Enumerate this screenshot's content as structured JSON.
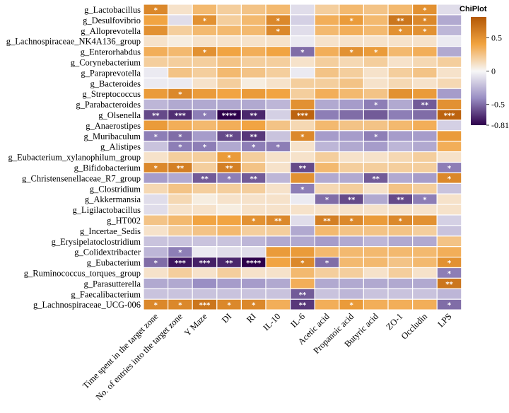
{
  "chart_data": {
    "type": "heatmap",
    "title": "",
    "rows": [
      "g_Lactobacillus",
      "g_Desulfovibrio",
      "g_Alloprevotella",
      "g_Lachnospiraceae_NK4A136_group",
      "g_Enterorhabdus",
      "g_Corynebacterium",
      "g_Paraprevotella",
      "g_Bacteroides",
      "g_Streptococcus",
      "g_Parabacteroides",
      "g_Olsenella",
      "g_Anaerostipes",
      "g_Muribaculum",
      "g_Alistipes",
      "g_Eubacterium_xylanophilum_group",
      "g_Bifidobacterium",
      "g_Christensenellaceae_R7_group",
      "g_Clostridium",
      "g_Akkermansia",
      "g_Ligilactobacillus",
      "g_HT002",
      "g_Incertae_Sedis",
      "g_Erysipelatoclostridium",
      "g_Colidextribacter",
      "g_Eubacterium",
      "g_Ruminococcus_torques_group",
      "g_Parasutterella",
      "g_Faecalibacterium",
      "g_Lachnospiraceae_UCG-006"
    ],
    "columns": [
      "Time spent in the target zone",
      "No. of entries into the target zone",
      "Y Maze",
      "DI",
      "RI",
      "IL-10",
      "IL-6",
      "Acetic acid",
      "Propanoic acid",
      "Butyric acid",
      "ZO-1",
      "Occludin",
      "LPS"
    ],
    "values": [
      [
        0.55,
        0.1,
        0.3,
        0.2,
        0.25,
        0.3,
        -0.1,
        0.2,
        0.3,
        0.25,
        0.3,
        0.5,
        -0.1
      ],
      [
        0.4,
        -0.1,
        0.5,
        0.2,
        0.3,
        0.55,
        -0.15,
        0.35,
        0.45,
        0.3,
        0.65,
        0.55,
        -0.3
      ],
      [
        0.5,
        0.2,
        0.3,
        0.3,
        0.3,
        0.55,
        -0.1,
        0.3,
        0.35,
        0.3,
        0.5,
        0.5,
        -0.25
      ],
      [
        0.1,
        0.05,
        0.1,
        0.1,
        0.1,
        0.1,
        -0.05,
        0.1,
        0.1,
        0.1,
        0.1,
        0.1,
        -0.05
      ],
      [
        0.35,
        0.3,
        0.5,
        0.4,
        0.35,
        0.4,
        -0.5,
        0.35,
        0.5,
        0.45,
        0.3,
        0.35,
        -0.3
      ],
      [
        0.2,
        0.2,
        0.2,
        0.25,
        0.2,
        0.2,
        0.1,
        0.2,
        0.15,
        0.2,
        0.1,
        0.15,
        0.2
      ],
      [
        -0.05,
        0.25,
        0.2,
        0.3,
        0.25,
        0.2,
        -0.05,
        0.25,
        0.2,
        0.1,
        0.2,
        0.25,
        0.1
      ],
      [
        -0.05,
        -0.05,
        0.1,
        0.2,
        0.05,
        0.1,
        0.2,
        0.2,
        0.25,
        0.1,
        0.15,
        0.1,
        0.15
      ],
      [
        0.45,
        0.55,
        0.45,
        0.4,
        0.45,
        0.4,
        0.2,
        0.35,
        0.3,
        0.25,
        0.5,
        0.45,
        -0.35
      ],
      [
        -0.25,
        -0.3,
        -0.3,
        -0.3,
        -0.3,
        -0.25,
        0.5,
        -0.3,
        -0.35,
        -0.45,
        -0.3,
        -0.55,
        0.5
      ],
      [
        -0.6,
        -0.68,
        -0.45,
        -0.81,
        -0.7,
        -0.15,
        0.75,
        -0.45,
        -0.5,
        -0.55,
        -0.45,
        -0.5,
        0.75
      ],
      [
        0.45,
        0.35,
        0.3,
        0.35,
        0.4,
        0.25,
        0.15,
        0.3,
        0.25,
        0.25,
        0.3,
        0.35,
        -0.15
      ],
      [
        -0.45,
        -0.5,
        -0.35,
        -0.6,
        -0.65,
        -0.2,
        0.55,
        -0.35,
        -0.35,
        -0.45,
        -0.35,
        -0.35,
        0.45
      ],
      [
        -0.2,
        -0.45,
        -0.45,
        -0.3,
        -0.45,
        -0.45,
        0.1,
        -0.25,
        -0.3,
        -0.35,
        -0.25,
        -0.3,
        0.35
      ],
      [
        0.1,
        0.2,
        0.2,
        0.45,
        0.2,
        0.1,
        0.1,
        0.2,
        0.1,
        0.1,
        0.15,
        0.2,
        0.1
      ],
      [
        0.55,
        0.6,
        0.2,
        0.6,
        0.25,
        0.1,
        -0.6,
        0.3,
        0.2,
        0.2,
        0.2,
        0.2,
        -0.45
      ],
      [
        -0.35,
        -0.3,
        -0.55,
        -0.45,
        -0.55,
        -0.25,
        0.5,
        -0.3,
        -0.3,
        -0.55,
        -0.3,
        -0.35,
        0.55
      ],
      [
        0.15,
        0.25,
        0.2,
        0.2,
        0.2,
        0.1,
        -0.45,
        0.15,
        0.2,
        0.1,
        0.25,
        0.2,
        -0.2
      ],
      [
        -0.1,
        0.15,
        0.05,
        0.1,
        0.1,
        0.1,
        -0.05,
        -0.5,
        -0.6,
        -0.3,
        -0.6,
        -0.45,
        0.1
      ],
      [
        -0.1,
        0.1,
        0.1,
        0.05,
        0.1,
        0.1,
        0.1,
        0.1,
        0.1,
        0.1,
        0.1,
        0.1,
        0.1
      ],
      [
        0.25,
        0.3,
        0.4,
        0.4,
        0.5,
        0.55,
        -0.1,
        0.6,
        0.55,
        0.45,
        0.55,
        0.5,
        -0.15
      ],
      [
        0.1,
        0.2,
        0.25,
        0.3,
        0.2,
        0.2,
        -0.3,
        0.3,
        0.25,
        0.25,
        0.25,
        0.2,
        -0.2
      ],
      [
        -0.2,
        -0.2,
        -0.2,
        -0.2,
        -0.25,
        -0.3,
        -0.3,
        -0.35,
        -0.3,
        -0.25,
        -0.3,
        -0.3,
        0.25
      ],
      [
        -0.25,
        -0.45,
        -0.05,
        -0.1,
        -0.1,
        0.45,
        0.45,
        0.3,
        0.3,
        0.3,
        0.3,
        0.3,
        0.35
      ],
      [
        -0.5,
        -0.75,
        -0.72,
        -0.7,
        -0.81,
        0.4,
        0.55,
        -0.5,
        0.3,
        0.3,
        0.25,
        0.3,
        0.5
      ],
      [
        0.1,
        0.2,
        0.1,
        0.2,
        0.1,
        0.1,
        0.3,
        0.2,
        0.2,
        0.1,
        0.2,
        0.1,
        -0.45
      ],
      [
        -0.3,
        -0.3,
        -0.4,
        -0.35,
        -0.35,
        -0.3,
        0.35,
        -0.3,
        -0.3,
        -0.3,
        -0.3,
        -0.3,
        0.65
      ],
      [
        -0.2,
        -0.2,
        -0.2,
        -0.2,
        -0.2,
        -0.2,
        -0.55,
        -0.2,
        -0.25,
        -0.2,
        -0.2,
        -0.2,
        -0.25
      ],
      [
        0.55,
        0.55,
        0.65,
        0.55,
        0.55,
        0.35,
        -0.65,
        0.35,
        0.45,
        0.35,
        0.35,
        0.35,
        -0.5
      ]
    ],
    "stars": [
      [
        "*",
        "",
        "",
        "",
        "",
        "",
        "",
        "",
        "",
        "",
        "",
        "*",
        ""
      ],
      [
        "",
        "",
        "*",
        "",
        "",
        "*",
        "",
        "",
        "*",
        "",
        "**",
        "*",
        ""
      ],
      [
        "",
        "",
        "",
        "",
        "",
        "*",
        "",
        "",
        "",
        "",
        "*",
        "*",
        ""
      ],
      [
        "",
        "",
        "",
        "",
        "",
        "",
        "",
        "",
        "",
        "",
        "",
        "",
        ""
      ],
      [
        "",
        "",
        "*",
        "",
        "",
        "",
        "*",
        "",
        "*",
        "*",
        "",
        "",
        ""
      ],
      [
        "",
        "",
        "",
        "",
        "",
        "",
        "",
        "",
        "",
        "",
        "",
        "",
        ""
      ],
      [
        "",
        "",
        "",
        "",
        "",
        "",
        "",
        "",
        "",
        "",
        "",
        "",
        ""
      ],
      [
        "",
        "",
        "",
        "",
        "",
        "",
        "",
        "",
        "",
        "",
        "",
        "",
        ""
      ],
      [
        "",
        "*",
        "",
        "",
        "",
        "",
        "",
        "",
        "",
        "",
        "",
        "",
        ""
      ],
      [
        "",
        "",
        "",
        "",
        "",
        "",
        "",
        "",
        "",
        "*",
        "",
        "**",
        ""
      ],
      [
        "**",
        "***",
        "*",
        "****",
        "**",
        "",
        "***",
        "",
        "",
        "",
        "",
        "",
        "***"
      ],
      [
        "",
        "",
        "",
        "",
        "",
        "",
        "",
        "",
        "",
        "",
        "",
        "",
        ""
      ],
      [
        "*",
        "*",
        "",
        "**",
        "**",
        "",
        "*",
        "",
        "",
        "*",
        "",
        "",
        ""
      ],
      [
        "",
        "*",
        "*",
        "",
        "*",
        "*",
        "",
        "",
        "",
        "",
        "",
        "",
        ""
      ],
      [
        "",
        "",
        "",
        "*",
        "",
        "",
        "",
        "",
        "",
        "",
        "",
        "",
        ""
      ],
      [
        "*",
        "**",
        "",
        "**",
        "",
        "",
        "**",
        "",
        "",
        "",
        "",
        "",
        "*"
      ],
      [
        "",
        "",
        "**",
        "*",
        "**",
        "",
        "",
        "",
        "",
        "**",
        "",
        "",
        "*"
      ],
      [
        "",
        "",
        "",
        "",
        "",
        "",
        "*",
        "",
        "",
        "",
        "",
        "",
        ""
      ],
      [
        "",
        "",
        "",
        "",
        "",
        "",
        "",
        "*",
        "**",
        "",
        "**",
        "*",
        ""
      ],
      [
        "",
        "",
        "",
        "",
        "",
        "",
        "",
        "",
        "",
        "",
        "",
        "",
        ""
      ],
      [
        "",
        "",
        "",
        "",
        "*",
        "**",
        "",
        "**",
        "*",
        "",
        "*",
        "",
        ""
      ],
      [
        "",
        "",
        "",
        "",
        "",
        "",
        "",
        "",
        "",
        "",
        "",
        "",
        ""
      ],
      [
        "",
        "",
        "",
        "",
        "",
        "",
        "",
        "",
        "",
        "",
        "",
        "",
        ""
      ],
      [
        "",
        "*",
        "",
        "",
        "",
        "",
        "",
        "",
        "",
        "",
        "",
        "",
        ""
      ],
      [
        "*",
        "***",
        "***",
        "**",
        "****",
        "",
        "*",
        "*",
        "",
        "",
        "",
        "",
        "*"
      ],
      [
        "",
        "",
        "",
        "",
        "",
        "",
        "",
        "",
        "",
        "",
        "",
        "",
        "*"
      ],
      [
        "",
        "",
        "",
        "",
        "",
        "",
        "",
        "",
        "",
        "",
        "",
        "",
        "**"
      ],
      [
        "",
        "",
        "",
        "",
        "",
        "",
        "**",
        "",
        "",
        "",
        "",
        "",
        ""
      ],
      [
        "*",
        "*",
        "***",
        "*",
        "*",
        "",
        "**",
        "",
        "*",
        "",
        "",
        "",
        "*"
      ]
    ],
    "colorbar": {
      "title": "ChiPlot",
      "min": -0.81,
      "max": 0.81,
      "tick_labels": [
        "0.5",
        "0",
        "-0.5",
        "-0.81"
      ],
      "tick_values": [
        0.5,
        0,
        -0.5,
        -0.81
      ],
      "colors": {
        "high": "#b35806",
        "mid": "#f7f7f7",
        "low": "#2d004b"
      }
    }
  }
}
